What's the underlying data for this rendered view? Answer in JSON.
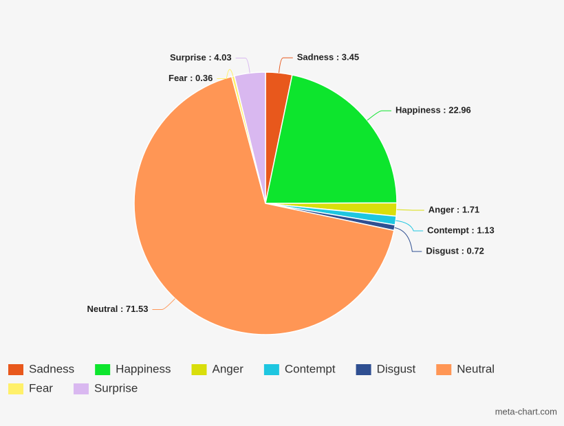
{
  "chart_data": {
    "type": "pie",
    "categories": [
      "Sadness",
      "Happiness",
      "Anger",
      "Contempt",
      "Disgust",
      "Neutral",
      "Fear",
      "Surprise"
    ],
    "values": [
      3.45,
      22.96,
      1.71,
      1.13,
      0.72,
      71.53,
      0.36,
      4.03
    ],
    "value_labels": [
      "Sadness : 3.45",
      "Happiness : 22.96",
      "Anger : 1.71",
      "Contempt : 1.13",
      "Disgust : 0.72",
      "Neutral : 71.53",
      "Fear : 0.36",
      "Surprise : 4.03"
    ],
    "colors": [
      "#e8581c",
      "#0de52d",
      "#d9de0b",
      "#1ec6e0",
      "#2f4f91",
      "#ff9655",
      "#fff06a",
      "#d9b8f0"
    ],
    "legend": "bottom",
    "credit": "meta-chart.com"
  }
}
